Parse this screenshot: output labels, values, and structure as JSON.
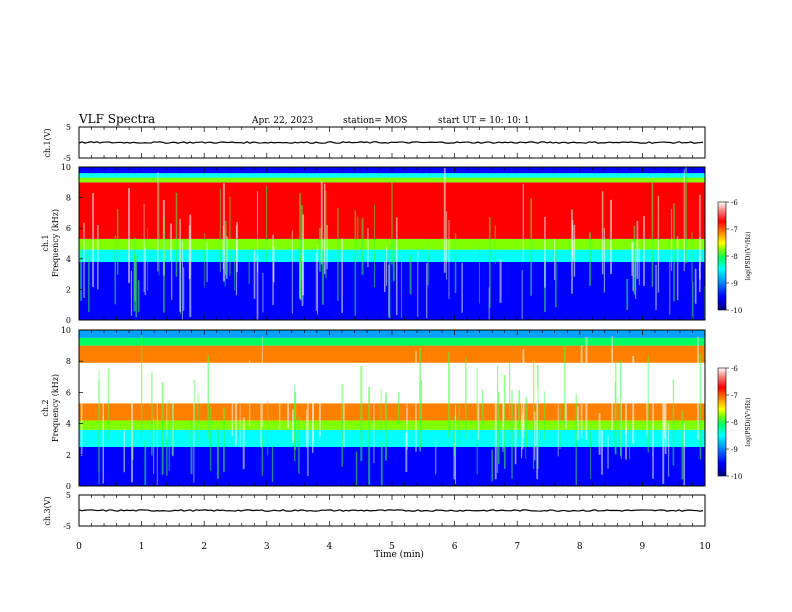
{
  "header": {
    "title": "VLF Spectra",
    "date": "Apr. 22, 2023",
    "station": "station= MOS",
    "start": "start  UT =   10: 10: 1"
  },
  "chart_data": [
    {
      "type": "line",
      "panel": "ch1-waveform",
      "ylabel": "ch.1(V)",
      "ylim": [
        -5,
        5
      ],
      "yticks": [
        "5",
        "-5"
      ],
      "trace_level": 0,
      "xlim": [
        0,
        10
      ]
    },
    {
      "type": "heatmap",
      "panel": "ch1-spectrogram",
      "ylabel_line1": "ch.1",
      "ylabel_line2": "Frequency (kHz)",
      "ylim": [
        0,
        10
      ],
      "yticks": [
        "0",
        "2",
        "4",
        "6",
        "8",
        "10"
      ],
      "xlim": [
        0,
        10
      ],
      "bands": [
        {
          "from": 0,
          "to": 3.8,
          "level": -9.6
        },
        {
          "from": 3.8,
          "to": 4.6,
          "level": -8.8
        },
        {
          "from": 4.6,
          "to": 5.3,
          "level": -8.0
        },
        {
          "from": 5.3,
          "to": 9.0,
          "level": -6.5
        },
        {
          "from": 9.0,
          "to": 9.3,
          "level": -7.8
        },
        {
          "from": 9.3,
          "to": 9.6,
          "level": -8.6
        },
        {
          "from": 9.6,
          "to": 10,
          "level": -9.5
        }
      ]
    },
    {
      "type": "heatmap",
      "panel": "ch2-spectrogram",
      "ylabel_line1": "ch.2",
      "ylabel_line2": "Frequency (kHz)",
      "ylim": [
        0,
        10
      ],
      "yticks": [
        "0",
        "2",
        "4",
        "6",
        "8",
        "10"
      ],
      "xlim": [
        0,
        10
      ],
      "bands": [
        {
          "from": 0,
          "to": 2.5,
          "level": -9.5
        },
        {
          "from": 2.5,
          "to": 3.6,
          "level": -8.7
        },
        {
          "from": 3.6,
          "to": 4.2,
          "level": -7.8
        },
        {
          "from": 4.2,
          "to": 5.3,
          "level": -6.9
        },
        {
          "from": 5.3,
          "to": 7.9,
          "level": -6.0
        },
        {
          "from": 7.9,
          "to": 9.0,
          "level": -7.0
        },
        {
          "from": 9.0,
          "to": 9.5,
          "level": -8.2
        },
        {
          "from": 9.5,
          "to": 10,
          "level": -8.9
        }
      ]
    },
    {
      "type": "line",
      "panel": "ch3-waveform",
      "ylabel": "ch.3(V)",
      "ylim": [
        -5,
        5
      ],
      "yticks": [
        "5",
        "-5"
      ],
      "trace_level": 0,
      "xlim": [
        0,
        10
      ]
    }
  ],
  "x_axis": {
    "label": "Time  (min)",
    "ticks": [
      "0",
      "1",
      "2",
      "3",
      "4",
      "5",
      "6",
      "7",
      "8",
      "9",
      "10"
    ]
  },
  "colorbar": {
    "label": "log(PSD)(V²/Hz)",
    "range": [
      -10,
      -6
    ],
    "ticks": [
      "-6",
      "-7",
      "-8",
      "-9",
      "-10"
    ],
    "colors": [
      "#000080",
      "#0000ff",
      "#00a0ff",
      "#00ffff",
      "#00ff60",
      "#80ff00",
      "#ffff00",
      "#ff8000",
      "#ff0000",
      "#ffffff"
    ]
  }
}
